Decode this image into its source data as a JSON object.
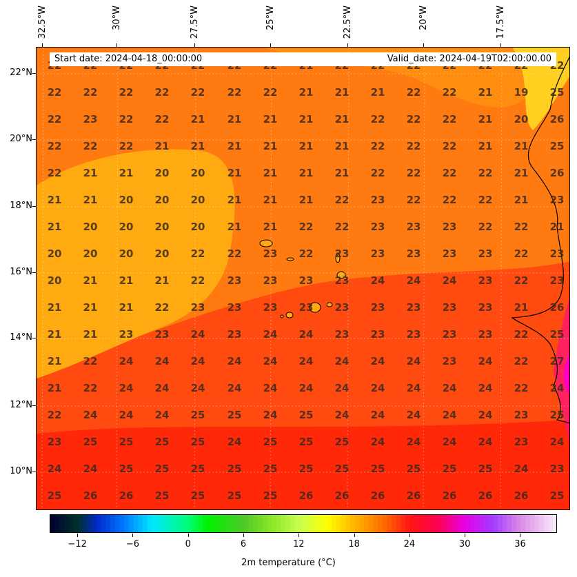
{
  "map": {
    "start_date": "Start date: 2024-04-18_00:00:00",
    "valid_date": "Valid_date: 2024-04-19T02:00:00.00",
    "lon_labels": [
      "32.5°W",
      "30°W",
      "27.5°W",
      "25°W",
      "22.5°W",
      "20°W",
      "17.5°W"
    ],
    "lat_labels": [
      "22°N",
      "20°N",
      "18°N",
      "16°N",
      "14°N",
      "12°N",
      "10°N"
    ],
    "grid": [
      [
        "22",
        "22",
        "22",
        "22",
        "22",
        "22",
        "22",
        "21",
        "22",
        "22",
        "22",
        "22",
        "22",
        "22",
        "22"
      ],
      [
        "22",
        "22",
        "22",
        "22",
        "22",
        "22",
        "22",
        "21",
        "21",
        "21",
        "22",
        "22",
        "21",
        "19",
        "25"
      ],
      [
        "22",
        "23",
        "22",
        "22",
        "21",
        "21",
        "21",
        "21",
        "21",
        "22",
        "22",
        "22",
        "21",
        "20",
        "26"
      ],
      [
        "22",
        "22",
        "22",
        "21",
        "21",
        "21",
        "21",
        "21",
        "21",
        "22",
        "22",
        "22",
        "21",
        "21",
        "25"
      ],
      [
        "22",
        "21",
        "21",
        "20",
        "20",
        "21",
        "21",
        "21",
        "21",
        "22",
        "22",
        "22",
        "22",
        "21",
        "26"
      ],
      [
        "21",
        "21",
        "20",
        "20",
        "20",
        "21",
        "21",
        "21",
        "22",
        "23",
        "22",
        "22",
        "22",
        "21",
        "23"
      ],
      [
        "21",
        "20",
        "20",
        "20",
        "20",
        "21",
        "21",
        "22",
        "22",
        "23",
        "23",
        "23",
        "22",
        "22",
        "21"
      ],
      [
        "20",
        "20",
        "20",
        "20",
        "22",
        "22",
        "23",
        "22",
        "23",
        "23",
        "23",
        "23",
        "23",
        "22",
        "23"
      ],
      [
        "20",
        "21",
        "21",
        "21",
        "22",
        "23",
        "23",
        "23",
        "23",
        "24",
        "24",
        "24",
        "23",
        "22",
        "23"
      ],
      [
        "21",
        "21",
        "21",
        "22",
        "23",
        "23",
        "23",
        "23",
        "23",
        "23",
        "23",
        "23",
        "23",
        "21",
        "26"
      ],
      [
        "21",
        "21",
        "23",
        "23",
        "24",
        "23",
        "24",
        "24",
        "23",
        "23",
        "23",
        "23",
        "23",
        "22",
        "25"
      ],
      [
        "21",
        "22",
        "24",
        "24",
        "24",
        "24",
        "24",
        "24",
        "24",
        "24",
        "24",
        "23",
        "24",
        "22",
        "27"
      ],
      [
        "21",
        "22",
        "24",
        "24",
        "24",
        "24",
        "24",
        "24",
        "24",
        "24",
        "24",
        "24",
        "24",
        "22",
        "24"
      ],
      [
        "22",
        "24",
        "24",
        "24",
        "25",
        "25",
        "24",
        "25",
        "24",
        "24",
        "24",
        "24",
        "24",
        "23",
        "25"
      ],
      [
        "23",
        "25",
        "25",
        "25",
        "25",
        "24",
        "25",
        "25",
        "25",
        "24",
        "24",
        "24",
        "24",
        "23",
        "24"
      ],
      [
        "24",
        "24",
        "25",
        "25",
        "25",
        "25",
        "25",
        "25",
        "25",
        "25",
        "25",
        "25",
        "25",
        "24",
        "23"
      ],
      [
        "25",
        "26",
        "26",
        "25",
        "25",
        "25",
        "25",
        "26",
        "26",
        "26",
        "26",
        "26",
        "26",
        "26",
        "25"
      ]
    ],
    "colors": {
      "cool_orange": "#ffaa10",
      "mid_orange": "#ff7a10",
      "warm_red": "#ff4a10",
      "hot_red": "#ff2808",
      "land_hot": "#ff00c0"
    }
  },
  "colorbar": {
    "title": "2m temperature ($^\\circ$C)",
    "title_display": "2m temperature (°C)",
    "tick_labels": [
      "−12",
      "−6",
      "0",
      "6",
      "12",
      "18",
      "24",
      "30",
      "36"
    ],
    "tick_values": [
      -12,
      -6,
      0,
      6,
      12,
      18,
      24,
      30,
      36
    ],
    "min": -15,
    "max": 40
  }
}
